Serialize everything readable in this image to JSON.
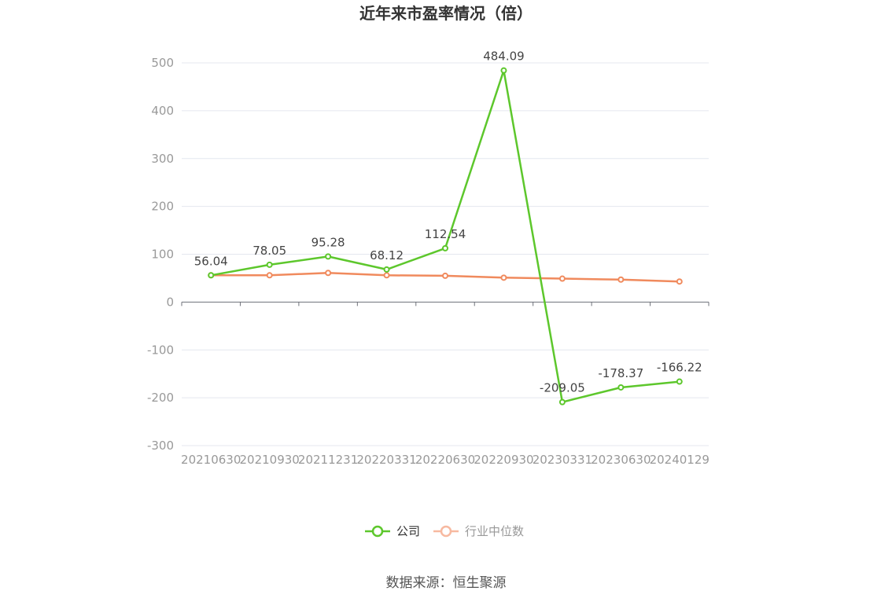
{
  "chart_data": {
    "type": "line",
    "title": "近年来市盈率情况（倍）",
    "categories": [
      "20210630",
      "20210930",
      "20211231",
      "20220331",
      "20220630",
      "20220930",
      "20230331",
      "20230630",
      "20240129"
    ],
    "series": [
      {
        "name": "公司",
        "color": "#5dc72c",
        "values": [
          56.04,
          78.05,
          95.28,
          68.12,
          112.54,
          484.09,
          -209.05,
          -178.37,
          -166.22
        ],
        "labels": [
          "56.04",
          "78.05",
          "95.28",
          "68.12",
          "112.54",
          "484.09",
          "-209.05",
          "-178.37",
          "-166.22"
        ]
      },
      {
        "name": "行业中位数",
        "color": "#f08a5d",
        "values": [
          56,
          56,
          61,
          56,
          55,
          51,
          49,
          47,
          43
        ]
      }
    ],
    "y_ticks": [
      500,
      400,
      300,
      200,
      100,
      0,
      -100,
      -200,
      -300
    ],
    "ylim": [
      -300,
      500
    ],
    "grid": true,
    "legend_position": "bottom"
  },
  "source": "数据来源：恒生聚源"
}
